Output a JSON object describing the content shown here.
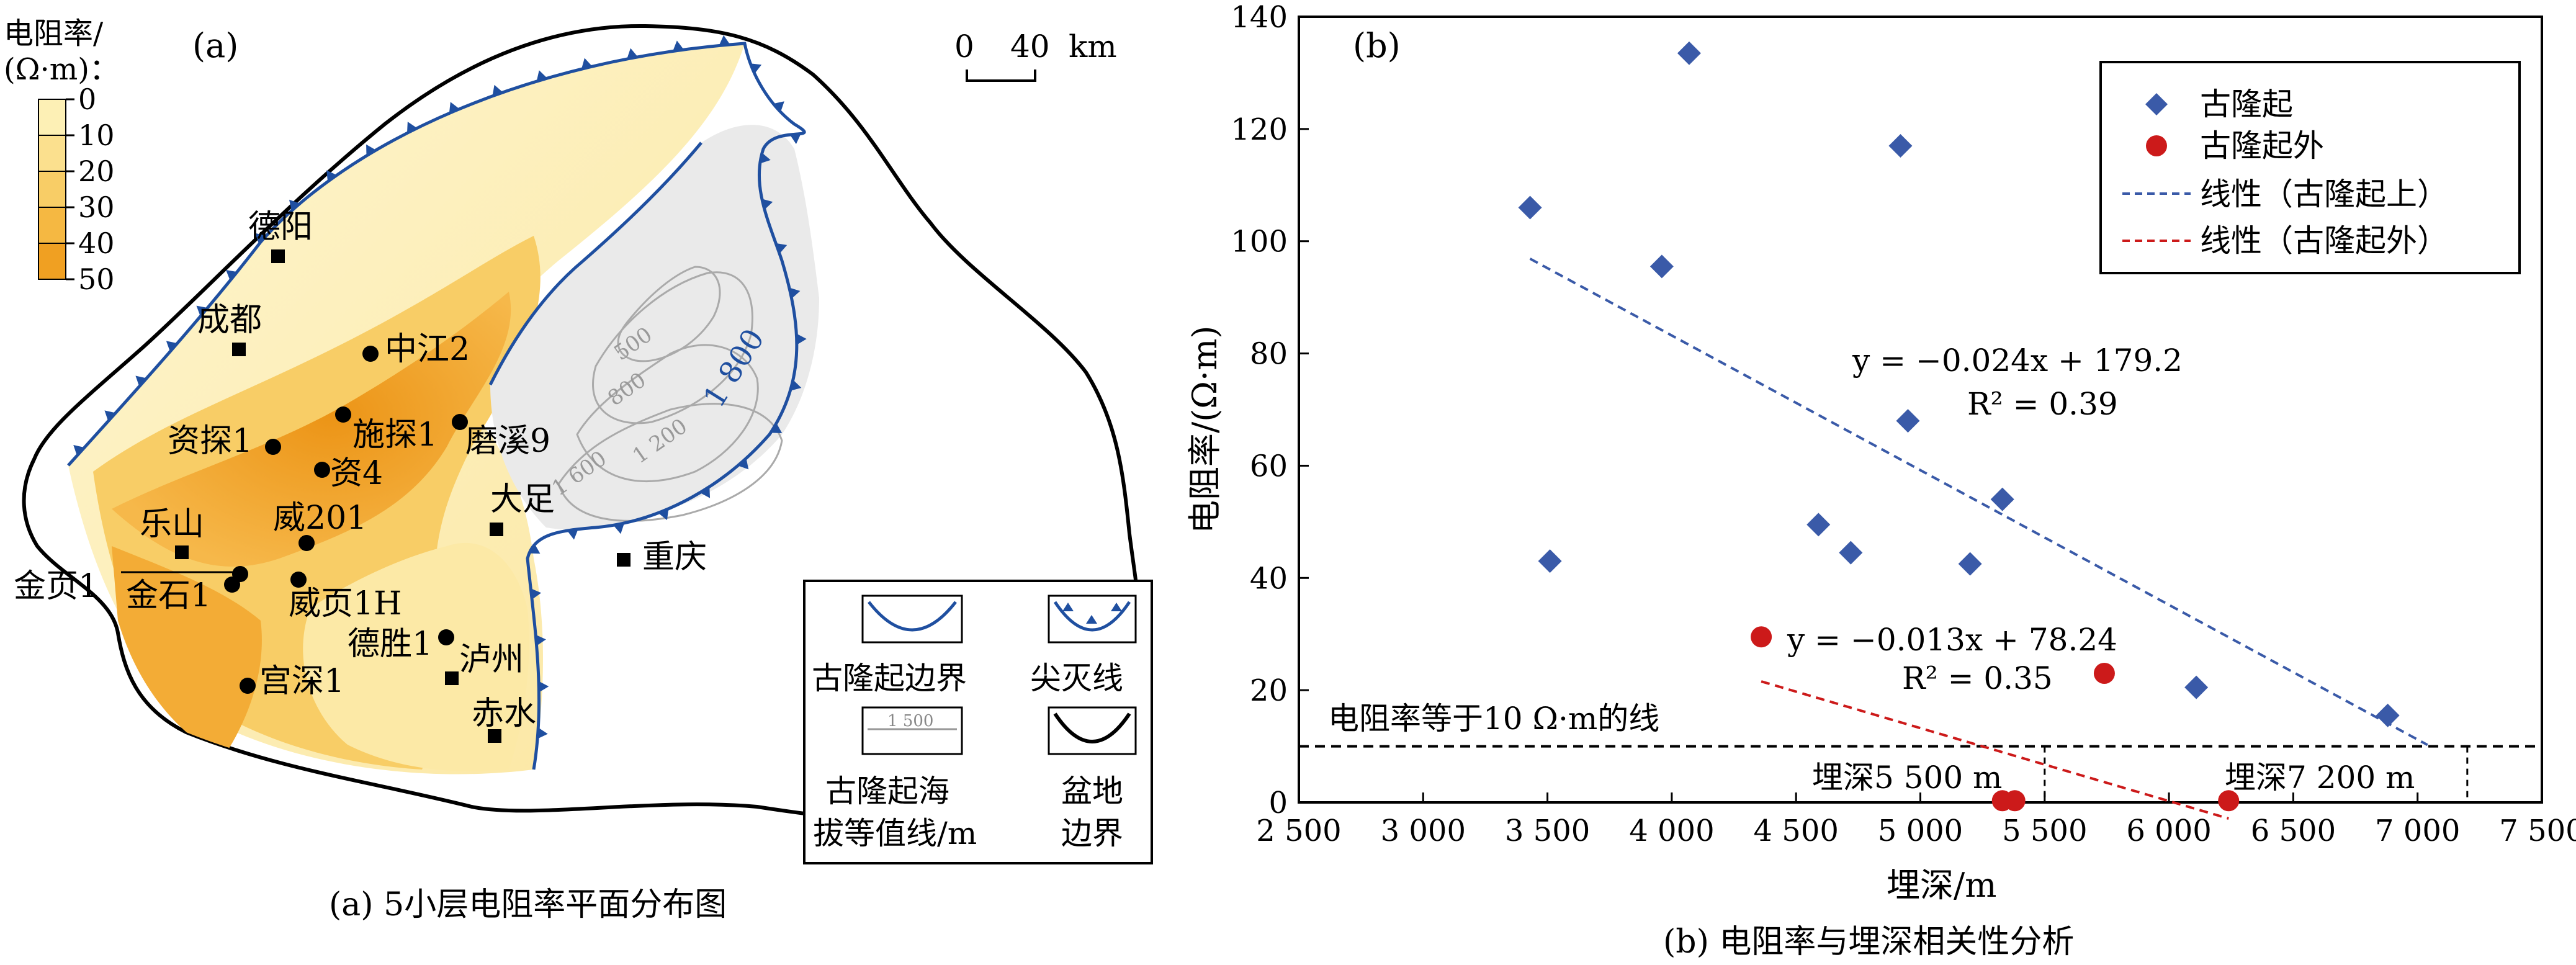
{
  "panel_a": {
    "label": "(a)",
    "caption": "(a) 5小层电阻率平面分布图",
    "scale_bar": {
      "zero": "0",
      "value": "40",
      "unit": "km"
    },
    "legend": {
      "title_line1": "电阻率/",
      "title_line2": "(Ω·m)：",
      "ticks": [
        "0",
        "10",
        "20",
        "30",
        "40",
        "50"
      ],
      "colors": [
        "#fdf0b5",
        "#fbe08e",
        "#f8cd66",
        "#f5b842",
        "#f0a022"
      ]
    },
    "cities": [
      {
        "name": "德阳"
      },
      {
        "name": "成都"
      },
      {
        "name": "乐山"
      },
      {
        "name": "大足"
      },
      {
        "name": "重庆"
      },
      {
        "name": "泸州"
      },
      {
        "name": "赤水"
      }
    ],
    "wells": [
      {
        "name": "中江2"
      },
      {
        "name": "施探1"
      },
      {
        "name": "资探1"
      },
      {
        "name": "磨溪9"
      },
      {
        "name": "资4"
      },
      {
        "name": "威201"
      },
      {
        "name": "金页1"
      },
      {
        "name": "金石1"
      },
      {
        "name": "威页1H"
      },
      {
        "name": "德胜1"
      },
      {
        "name": "宫深1"
      }
    ],
    "contours": [
      "500",
      "800",
      "1 200",
      "1 600",
      "1 800"
    ],
    "map_legend": {
      "uplift_boundary": "古隆起边界",
      "pinchout": "尖灭线",
      "contour_line1": "古隆起海",
      "contour_line2": "拔等值线/m",
      "contour_sample": "1 500",
      "basin_line1": "盆地",
      "basin_line2": "边界"
    }
  },
  "chart_data": {
    "type": "scatter",
    "label": "(b)",
    "caption": "(b) 电阻率与埋深相关性分析",
    "xlabel": "埋深/m",
    "ylabel": "电阻率/(Ω·m)",
    "xlim": [
      2500,
      7500
    ],
    "ylim": [
      0,
      140
    ],
    "xticks": [
      2500,
      3000,
      3500,
      4000,
      4500,
      5000,
      5500,
      6000,
      6500,
      7000,
      7500
    ],
    "xtick_labels": [
      "2 500",
      "3 000",
      "3 500",
      "4 000",
      "4 500",
      "5 000",
      "5 500",
      "6 000",
      "6 500",
      "7 000",
      "7 500"
    ],
    "yticks": [
      0,
      20,
      40,
      60,
      80,
      100,
      120,
      140
    ],
    "ytick_labels": [
      "0",
      "20",
      "40",
      "60",
      "80",
      "100",
      "120",
      "140"
    ],
    "series": [
      {
        "name": "古隆起",
        "marker": "diamond",
        "color": "#3a5aa8",
        "points": [
          {
            "x": 3430,
            "y": 106
          },
          {
            "x": 3510,
            "y": 43
          },
          {
            "x": 3960,
            "y": 95.5
          },
          {
            "x": 4070,
            "y": 133.5
          },
          {
            "x": 4920,
            "y": 117
          },
          {
            "x": 4950,
            "y": 68
          },
          {
            "x": 4590,
            "y": 49.5
          },
          {
            "x": 4720,
            "y": 44.5
          },
          {
            "x": 5200,
            "y": 42.5
          },
          {
            "x": 5330,
            "y": 54
          },
          {
            "x": 6110,
            "y": 20.5
          },
          {
            "x": 6880,
            "y": 15.5
          }
        ]
      },
      {
        "name": "古隆起外",
        "marker": "circle",
        "color": "#cc1a1a",
        "points": [
          {
            "x": 4360,
            "y": 29.5
          },
          {
            "x": 5330,
            "y": 0.3
          },
          {
            "x": 5380,
            "y": 0.3
          },
          {
            "x": 5740,
            "y": 23
          },
          {
            "x": 6240,
            "y": 0.3
          }
        ]
      }
    ],
    "trendlines": [
      {
        "name": "线性（古隆起上）",
        "color": "#3a5aa8",
        "slope": -0.024,
        "intercept": 179.2,
        "x_range": [
          3430,
          7040
        ],
        "equation": "y = −0.024x + 179.2",
        "r2": "R² = 0.39"
      },
      {
        "name": "线性（古隆起外）",
        "color": "#cc1a1a",
        "slope": -0.013,
        "intercept": 78.24,
        "x_range": [
          4360,
          6240
        ],
        "equation": "y = −0.013x + 78.24",
        "r2": "R² = 0.35"
      }
    ],
    "reference_line": {
      "y": 10,
      "label": "电阻率等于10 Ω·m的线"
    },
    "depth_markers": [
      {
        "x": 5500,
        "label": "埋深5 500 m"
      },
      {
        "x": 7200,
        "label": "埋深7 200 m"
      }
    ],
    "legend": {
      "position": "top-right",
      "entries": [
        "古隆起",
        "古隆起外",
        "线性（古隆起上）",
        "线性（古隆起外）"
      ]
    }
  }
}
